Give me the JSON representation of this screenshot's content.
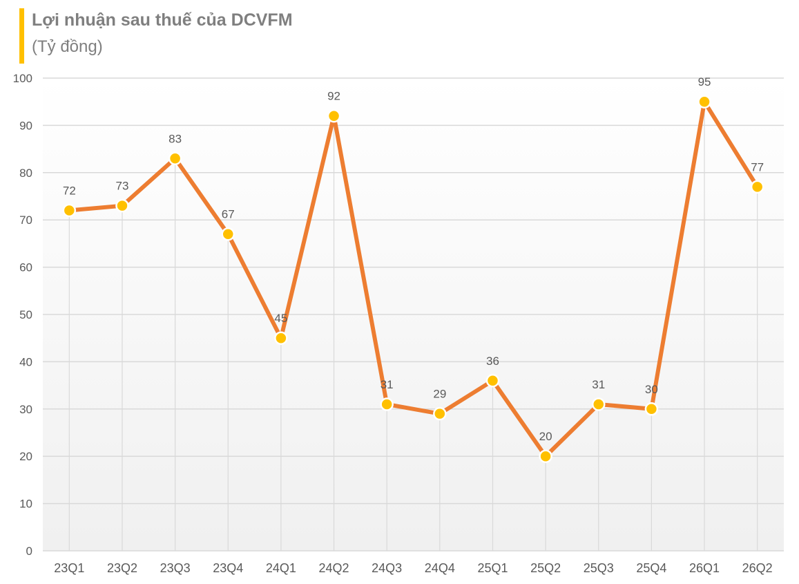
{
  "colors": {
    "accent_bar": "#ffc000",
    "line": "#ed7d31",
    "marker": "#ffc000",
    "grid": "#d9d9d9",
    "text": "#595959",
    "title_text": "#7f7f7f"
  },
  "chart_data": {
    "type": "line",
    "title": "Lợi nhuận sau thuế của DCVFM",
    "subtitle": "(Tỷ đồng)",
    "categories": [
      "23Q1",
      "23Q2",
      "23Q3",
      "23Q4",
      "24Q1",
      "24Q2",
      "24Q3",
      "24Q4",
      "25Q1",
      "25Q2",
      "25Q3",
      "25Q4",
      "26Q1",
      "26Q2"
    ],
    "values": [
      72,
      73,
      83,
      67,
      45,
      92,
      31,
      29,
      36,
      20,
      31,
      30,
      95,
      77
    ],
    "data_labels": [
      "72",
      "73",
      "83",
      "67",
      "45",
      "92",
      "31",
      "29",
      "36",
      "20",
      "31",
      "30",
      "95",
      "77"
    ],
    "ylim": [
      0,
      100
    ],
    "yticks": [
      0,
      10,
      20,
      30,
      40,
      50,
      60,
      70,
      80,
      90,
      100
    ],
    "grid": true,
    "legend": "none",
    "xlabel": "",
    "ylabel": ""
  }
}
